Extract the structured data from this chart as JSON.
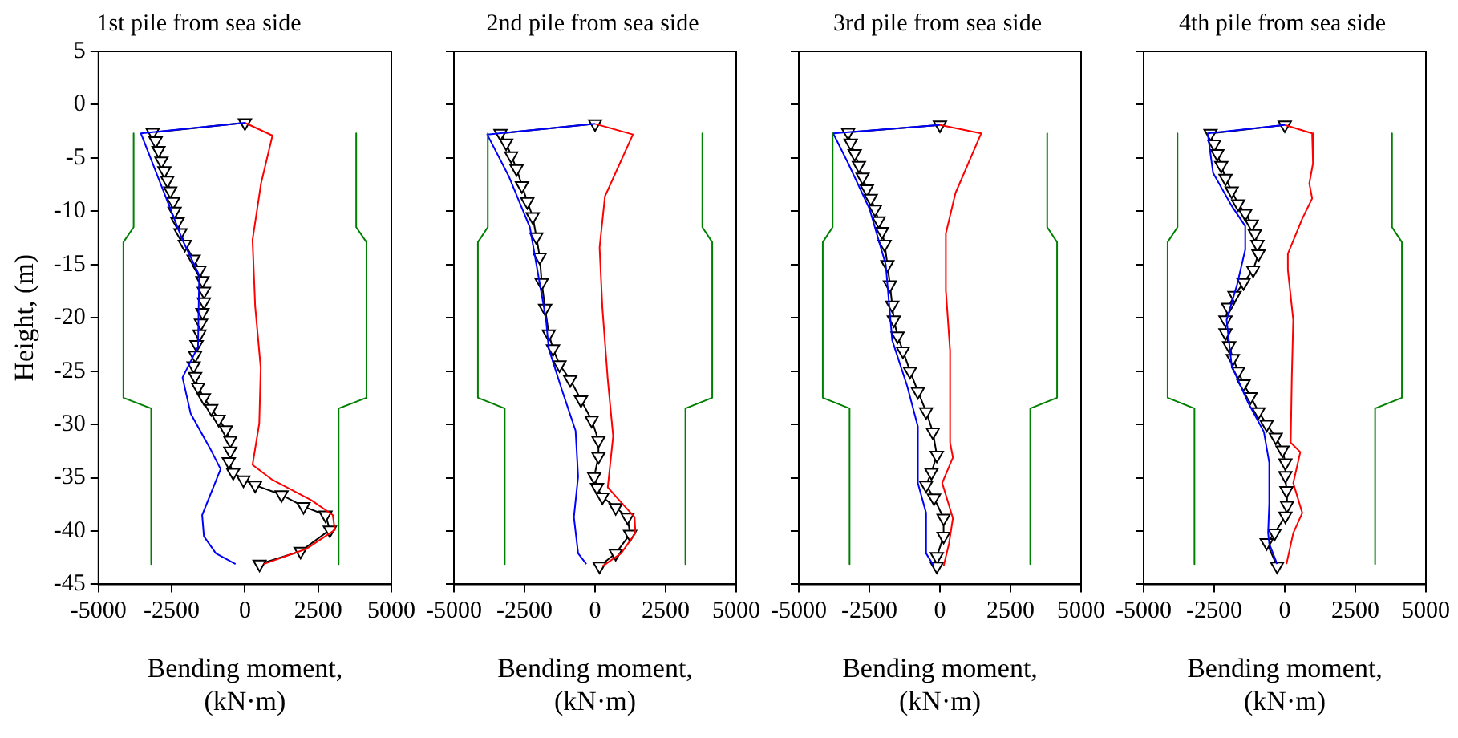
{
  "chart_data": [
    {
      "type": "line",
      "title": "1st pile from sea side",
      "xlabel": "Bending moment,\n(kN·m)",
      "ylabel": "Height, (m)",
      "xlim": [
        -5000,
        5000
      ],
      "xticks": [
        -5000,
        -2500,
        0,
        2500,
        5000
      ],
      "ylim": [
        -45,
        5
      ],
      "yticks": [
        -45,
        -40,
        -35,
        -30,
        -25,
        -20,
        -15,
        -10,
        -5,
        0,
        5
      ],
      "grid": false,
      "legend": false,
      "series": [
        {
          "color": "#008000",
          "marker": "none",
          "x": [
            -3800,
            -3800,
            -4150,
            -4150,
            -3200,
            -3200
          ],
          "values": [
            -2.7,
            -11.5,
            -12.9,
            -27.5,
            -28.5,
            -43.1
          ]
        },
        {
          "color": "#008000",
          "marker": "none",
          "x": [
            3800,
            3800,
            4150,
            4150,
            3200,
            3200
          ],
          "values": [
            -2.7,
            -11.5,
            -12.9,
            -27.5,
            -28.5,
            -43.1
          ]
        },
        {
          "color": "#ff0000",
          "marker": "none",
          "x": [
            0,
            940,
            550,
            260,
            350,
            540,
            490,
            260,
            940,
            2260,
            3000,
            3070,
            2080,
            640
          ],
          "values": [
            -1.7,
            -2.9,
            -7.4,
            -12.7,
            -18.9,
            -24.7,
            -29.9,
            -33.8,
            -35.2,
            -37.1,
            -38.5,
            -39.9,
            -41.7,
            -43.1
          ]
        },
        {
          "color": "#0000ff",
          "marker": "none",
          "x": [
            0,
            -3550,
            -2130,
            -1560,
            -1600,
            -2130,
            -1850,
            -1180,
            -830,
            -1460,
            -1400,
            -990,
            -320
          ],
          "values": [
            -1.7,
            -2.7,
            -12.7,
            -16,
            -22.7,
            -25.6,
            -29,
            -32.3,
            -34.2,
            -38.5,
            -40.5,
            -42.1,
            -43.1
          ]
        },
        {
          "color": "#000000",
          "marker": "triangle",
          "x": [
            0,
            -3150,
            -3050,
            -2950,
            -2850,
            -2750,
            -2650,
            -2550,
            -2450,
            -2400,
            -2300,
            -2200,
            -2050,
            -1750,
            -1550,
            -1450,
            -1400,
            -1400,
            -1450,
            -1500,
            -1550,
            -1650,
            -1700,
            -1750,
            -1700,
            -1600,
            -1400,
            -1150,
            -900,
            -650,
            -500,
            -500,
            -550,
            -400,
            -50,
            350,
            1250,
            2000,
            2750,
            2900,
            1900,
            500
          ],
          "values": [
            -1.7,
            -2.6,
            -3.4,
            -4.3,
            -5.3,
            -6.2,
            -7.1,
            -8.1,
            -9.1,
            -10,
            -11,
            -12,
            -13.1,
            -14.5,
            -15.5,
            -16.5,
            -17.5,
            -18.5,
            -19.5,
            -20.5,
            -21.5,
            -22.5,
            -23.5,
            -24.5,
            -25.5,
            -26.5,
            -27.5,
            -28.5,
            -29.5,
            -30.5,
            -31.5,
            -32.5,
            -33.5,
            -34.5,
            -35.2,
            -35.7,
            -36.6,
            -37.7,
            -38.5,
            -39.9,
            -41.9,
            -43.1
          ]
        }
      ]
    },
    {
      "type": "line",
      "title": "2nd pile from sea side",
      "xlabel": "Bending moment,\n(kN·m)",
      "xlim": [
        -5000,
        5000
      ],
      "xticks": [
        -5000,
        -2500,
        0,
        2500,
        5000
      ],
      "ylim": [
        -45,
        5
      ],
      "yticks": [
        -45,
        -40,
        -35,
        -30,
        -25,
        -20,
        -15,
        -10,
        -5,
        0,
        5
      ],
      "tick_labels": "x",
      "grid": false,
      "legend": false,
      "series": [
        {
          "color": "#008000",
          "marker": "none",
          "x": [
            -3800,
            -3800,
            -4150,
            -4150,
            -3200,
            -3200
          ],
          "values": [
            -2.7,
            -11.5,
            -12.9,
            -27.5,
            -28.5,
            -43.1
          ]
        },
        {
          "color": "#008000",
          "marker": "none",
          "x": [
            3800,
            3800,
            4150,
            4150,
            3200,
            3200
          ],
          "values": [
            -2.7,
            -11.5,
            -12.9,
            -27.5,
            -28.5,
            -43.1
          ]
        },
        {
          "color": "#ff0000",
          "marker": "none",
          "x": [
            0,
            1340,
            350,
            160,
            260,
            450,
            640,
            450,
            920,
            1400,
            1430,
            920,
            260
          ],
          "values": [
            -1.8,
            -2.8,
            -8.6,
            -13.4,
            -19.1,
            -25.8,
            -31.1,
            -35.9,
            -37.3,
            -38.7,
            -40.2,
            -42.1,
            -43.3
          ]
        },
        {
          "color": "#0000ff",
          "marker": "none",
          "x": [
            0,
            -3820,
            -3060,
            -2310,
            -1740,
            -1640,
            -1170,
            -690,
            -600,
            -750,
            -600,
            -310
          ],
          "values": [
            -1.8,
            -2.8,
            -6.7,
            -11.5,
            -20.1,
            -22.9,
            -26.8,
            -30.6,
            -34.9,
            -38.7,
            -42.1,
            -43.1
          ]
        },
        {
          "color": "#000000",
          "marker": "triangle",
          "x": [
            0,
            -3350,
            -3150,
            -2970,
            -2780,
            -2590,
            -2400,
            -2210,
            -2080,
            -1960,
            -1890,
            -1770,
            -1640,
            -1490,
            -1260,
            -880,
            -500,
            -120,
            120,
            120,
            -30,
            70,
            260,
            730,
            1150,
            1240,
            730,
            160
          ],
          "values": [
            -1.8,
            -2.7,
            -3.6,
            -4.8,
            -6,
            -7.6,
            -9.1,
            -10.5,
            -12.4,
            -14.3,
            -16.7,
            -19.1,
            -21.5,
            -22.9,
            -24.4,
            -25.8,
            -27.7,
            -29.6,
            -31.5,
            -33,
            -34.9,
            -35.9,
            -36.8,
            -37.8,
            -38.7,
            -40.3,
            -42.1,
            -43.3
          ]
        }
      ]
    },
    {
      "type": "line",
      "title": "3rd pile from sea side",
      "xlabel": "Bending moment,\n(kN·m)",
      "xlim": [
        -5000,
        5000
      ],
      "xticks": [
        -5000,
        -2500,
        0,
        2500,
        5000
      ],
      "ylim": [
        -45,
        5
      ],
      "yticks": [
        -45,
        -40,
        -35,
        -30,
        -25,
        -20,
        -15,
        -10,
        -5,
        0,
        5
      ],
      "tick_labels": "x",
      "grid": false,
      "legend": false,
      "series": [
        {
          "color": "#008000",
          "marker": "none",
          "x": [
            -3800,
            -3800,
            -4150,
            -4150,
            -3200,
            -3200
          ],
          "values": [
            -2.7,
            -11.5,
            -12.9,
            -27.5,
            -28.5,
            -43.1
          ]
        },
        {
          "color": "#008000",
          "marker": "none",
          "x": [
            3800,
            3800,
            4150,
            4150,
            3200,
            3200
          ],
          "values": [
            -2.7,
            -11.5,
            -12.9,
            -27.5,
            -28.5,
            -43.1
          ]
        },
        {
          "color": "#ff0000",
          "marker": "none",
          "x": [
            0,
            1460,
            550,
            210,
            210,
            360,
            360,
            460,
            80,
            460,
            320,
            130
          ],
          "values": [
            -1.9,
            -2.7,
            -8.3,
            -12.1,
            -17.4,
            -23.1,
            -31.7,
            -33.1,
            -35.5,
            -38.8,
            -41.2,
            -43.3
          ]
        },
        {
          "color": "#0000ff",
          "marker": "none",
          "x": [
            0,
            -3780,
            -3250,
            -2490,
            -1920,
            -1690,
            -1160,
            -780,
            -780,
            -490,
            -490,
            -210
          ],
          "values": [
            -1.9,
            -2.7,
            -5.5,
            -9.8,
            -15,
            -22.1,
            -26.4,
            -30.2,
            -35.5,
            -38.3,
            -42.1,
            -43.3
          ]
        },
        {
          "color": "#000000",
          "marker": "triangle",
          "x": [
            0,
            -3250,
            -3160,
            -3020,
            -2870,
            -2740,
            -2590,
            -2450,
            -2300,
            -2170,
            -2050,
            -1960,
            -1860,
            -1770,
            -1690,
            -1630,
            -1500,
            -1310,
            -1060,
            -780,
            -490,
            -250,
            -110,
            -300,
            -490,
            -210,
            130,
            130,
            -110,
            -110
          ],
          "values": [
            -1.9,
            -2.6,
            -3.6,
            -4.6,
            -5.7,
            -6.8,
            -7.9,
            -8.8,
            -9.8,
            -10.9,
            -11.9,
            -13.1,
            -15,
            -16.9,
            -18.8,
            -20.2,
            -21.7,
            -23.1,
            -25,
            -26.9,
            -28.8,
            -30.7,
            -32.9,
            -34.5,
            -35.7,
            -36.9,
            -38.8,
            -40.5,
            -42.4,
            -43.3
          ]
        }
      ]
    },
    {
      "type": "line",
      "title": "4th pile from sea side",
      "xlabel": "Bending moment,\n(kN·m)",
      "xlim": [
        -5000,
        5000
      ],
      "xticks": [
        -5000,
        -2500,
        0,
        2500,
        5000
      ],
      "ylim": [
        -45,
        5
      ],
      "yticks": [
        -45,
        -40,
        -35,
        -30,
        -25,
        -20,
        -15,
        -10,
        -5,
        0,
        5
      ],
      "tick_labels": "x",
      "grid": false,
      "legend": false,
      "series": [
        {
          "color": "#008000",
          "marker": "none",
          "x": [
            -3800,
            -3800,
            -4150,
            -4150,
            -3200,
            -3200
          ],
          "values": [
            -2.7,
            -11.5,
            -12.9,
            -27.5,
            -28.5,
            -43.1
          ]
        },
        {
          "color": "#008000",
          "marker": "none",
          "x": [
            3800,
            3800,
            4150,
            4150,
            3200,
            3200
          ],
          "values": [
            -2.7,
            -11.5,
            -12.9,
            -27.5,
            -28.5,
            -43.1
          ]
        },
        {
          "color": "#ff0000",
          "marker": "none",
          "x": [
            0,
            970,
            1000,
            870,
            970,
            620,
            110,
            110,
            300,
            250,
            210,
            550,
            300,
            620,
            300,
            60
          ],
          "values": [
            -1.9,
            -2.7,
            -5.5,
            -7.4,
            -8.8,
            -10.7,
            -14,
            -15.5,
            -20.2,
            -25.5,
            -31.7,
            -32.6,
            -35.5,
            -38.3,
            -40.2,
            -43.1
          ]
        },
        {
          "color": "#0000ff",
          "marker": "none",
          "x": [
            0,
            -2730,
            -2540,
            -1880,
            -1400,
            -1400,
            -1690,
            -2060,
            -1880,
            -1310,
            -740,
            -550,
            -550,
            -590,
            -550,
            -270
          ],
          "values": [
            -1.9,
            -2.7,
            -6.4,
            -9.5,
            -11.4,
            -13.6,
            -16.9,
            -20.2,
            -24.5,
            -27.9,
            -30.7,
            -33.6,
            -37.4,
            -40.2,
            -41.2,
            -43.1
          ]
        },
        {
          "color": "#000000",
          "marker": "triangle",
          "x": [
            0,
            -2630,
            -2500,
            -2390,
            -2250,
            -2100,
            -1880,
            -1650,
            -1400,
            -1170,
            -1060,
            -970,
            -930,
            -1120,
            -1460,
            -1780,
            -2010,
            -2100,
            -2100,
            -1970,
            -1840,
            -1650,
            -1460,
            -1210,
            -930,
            -640,
            -320,
            -80,
            20,
            20,
            60,
            80,
            20,
            -360,
            -640,
            -270
          ],
          "values": [
            -1.9,
            -2.7,
            -3.7,
            -4.6,
            -5.7,
            -6.9,
            -8.1,
            -9.3,
            -10.2,
            -11.2,
            -12.1,
            -13.1,
            -14,
            -15.5,
            -16.7,
            -17.9,
            -19,
            -20.2,
            -21.4,
            -22.6,
            -23.8,
            -25,
            -26.2,
            -27.4,
            -28.8,
            -30,
            -31.2,
            -32.4,
            -33.6,
            -34.8,
            -36.2,
            -37.6,
            -38.6,
            -40.2,
            -41.1,
            -43.3
          ]
        }
      ]
    }
  ]
}
